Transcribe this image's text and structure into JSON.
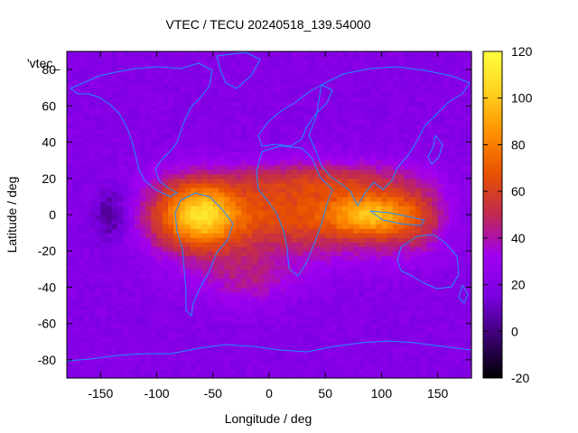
{
  "chart_data": {
    "type": "heatmap",
    "title": "VTEC / TECU 20240518_139.54000",
    "xlabel": "Longitude / deg",
    "ylabel": "Latitude / deg",
    "xlim": [
      -180,
      180
    ],
    "ylim": [
      -90,
      90
    ],
    "x_ticks": [
      -150,
      -100,
      -50,
      0,
      50,
      100,
      150
    ],
    "y_ticks": [
      -80,
      -60,
      -40,
      -20,
      0,
      20,
      40,
      60,
      80
    ],
    "legend_label": "'vtec_",
    "colorbar": {
      "range": [
        -20,
        120
      ],
      "ticks": [
        -20,
        0,
        20,
        40,
        60,
        80,
        100,
        120
      ],
      "palette": [
        "#000000",
        "#3a0070",
        "#7a00e0",
        "#a000f0",
        "#c02a50",
        "#e85000",
        "#ff9000",
        "#ffd21e",
        "#ffff40"
      ]
    },
    "features": [
      {
        "name": "equatorial crest",
        "lon": [
          -120,
          150
        ],
        "lat": [
          -30,
          30
        ],
        "peak_vtec": 105
      },
      {
        "name": "south american peak",
        "lon": -60,
        "lat": 0,
        "vtec": 105
      },
      {
        "name": "indian ocean crest",
        "lon": 90,
        "lat": 0,
        "vtec": 100
      },
      {
        "name": "pacific trough",
        "lon": -140,
        "lat": 0,
        "vtec": 5
      },
      {
        "name": "polar background",
        "vtec": 20
      }
    ],
    "coastline_color": "#1e90ff"
  }
}
